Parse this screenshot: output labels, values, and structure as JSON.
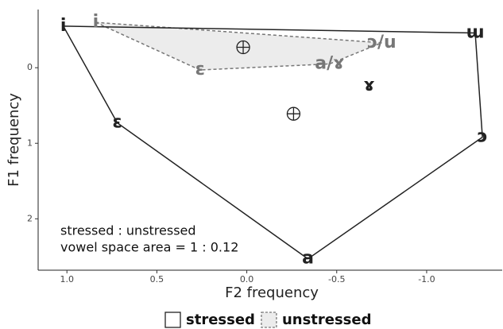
{
  "chart_data": {
    "type": "vowel-space",
    "xlabel": "F2 frequency",
    "ylabel": "F1 frequency",
    "xlim": [
      1.16,
      -1.42
    ],
    "ylim": [
      -0.77,
      2.68
    ],
    "xticks": [
      {
        "value": 1,
        "label": "1.0"
      },
      0.5,
      {
        "value": 0,
        "label": "0.0"
      },
      -0.5,
      {
        "value": -1,
        "label": "-1.0"
      }
    ],
    "yticks": [
      0,
      1,
      2
    ],
    "annotations": [
      "stressed : unstressed",
      "vowel space area = 1 : 0.12"
    ],
    "series": [
      {
        "name": "stressed",
        "color": "#222222",
        "fill": "none",
        "dashed": false,
        "labels": [
          "i",
          "ɯ",
          "ɔ",
          "a",
          "ɛ"
        ],
        "x": [
          1.02,
          -1.27,
          -1.31,
          -0.34,
          0.72
        ],
        "y": [
          -0.55,
          -0.46,
          0.92,
          2.53,
          0.73
        ],
        "interior": [
          {
            "label": "ɤ",
            "x": -0.68,
            "y": 0.24
          }
        ],
        "centroid": {
          "x": -0.26,
          "y": 0.61
        }
      },
      {
        "name": "unstressed",
        "color": "#777777",
        "fill": "#ececec",
        "dashed": true,
        "labels": [
          "i",
          "ɔ/u",
          "a/ɤ",
          "ɛ"
        ],
        "x": [
          0.84,
          -0.75,
          -0.46,
          0.26
        ],
        "y": [
          -0.6,
          -0.33,
          -0.05,
          0.03
        ],
        "interior": [],
        "centroid": {
          "x": 0.02,
          "y": -0.27
        }
      }
    ]
  }
}
